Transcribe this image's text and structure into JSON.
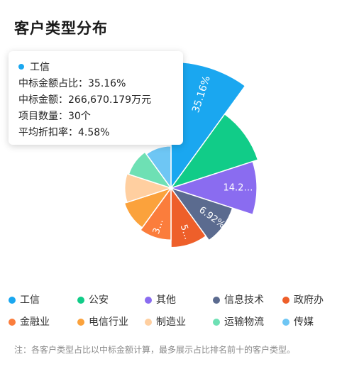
{
  "title": "客户类型分布",
  "chart_data": {
    "type": "pie",
    "variant": "rose",
    "unit": "万元",
    "series": [
      {
        "name": "工信",
        "value": 266670.179,
        "percent": 35.16,
        "label": "35.16%",
        "color": "#1aa7f0"
      },
      {
        "name": "公安",
        "percent": 16.5,
        "label": "",
        "color": "#11cc88"
      },
      {
        "name": "其他",
        "percent": 14.2,
        "label": "14.2…",
        "color": "#8a6cf0"
      },
      {
        "name": "信息技术",
        "percent": 6.92,
        "label": "6.92%",
        "color": "#5b6b8f"
      },
      {
        "name": "政府办",
        "percent": 5.5,
        "label": "5…",
        "color": "#ee5f2a"
      },
      {
        "name": "金融业",
        "percent": 3.8,
        "label": "3…",
        "color": "#fb7d3c"
      },
      {
        "name": "电信行业",
        "percent": 3.2,
        "label": "",
        "color": "#fba23c"
      },
      {
        "name": "制造业",
        "percent": 2.7,
        "label": "",
        "color": "#ffcfa0"
      },
      {
        "name": "运输物流",
        "percent": 2.4,
        "label": "",
        "color": "#6ee0b4"
      },
      {
        "name": "传媒",
        "percent": 2.0,
        "label": "",
        "color": "#6ec6f4"
      }
    ]
  },
  "tooltip": {
    "name": "工信",
    "color": "#1aa7f0",
    "line1": "中标金额占比：35.16%",
    "line2": "中标金额：266,670.179万元",
    "line3": "项目数量：30个",
    "line4": "平均折扣率：4.58%"
  },
  "legend": [
    "工信",
    "公安",
    "其他",
    "信息技术",
    "政府办",
    "金融业",
    "电信行业",
    "制造业",
    "运输物流",
    "传媒"
  ],
  "note": "注：各客户类型占比以中标金额计算，最多展示占比排名前十的客户类型。"
}
